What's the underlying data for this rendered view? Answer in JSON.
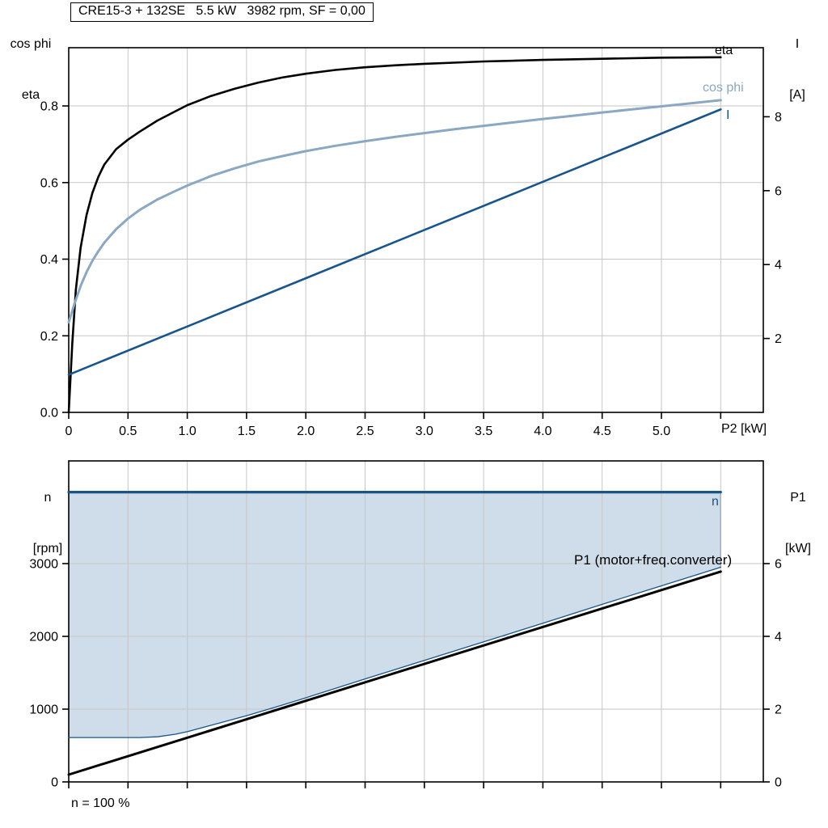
{
  "colors": {
    "black": "#000000",
    "dark_blue": "#17558a",
    "light_blue": "#8aa8c3",
    "fill_blue": "#cedde9",
    "grid": "#c6c6c6",
    "frame": "#000000",
    "background": "#ffffff"
  },
  "header": {
    "title": "CRE15-3 + 132SE   5.5 kW   3982 rpm, SF = 0,00"
  },
  "chart_data": [
    {
      "type": "line",
      "title": "CRE15-3 + 132SE   5.5 kW   3982 rpm, SF = 0,00",
      "xlabel": "P2 [kW]",
      "xlim": [
        0,
        5.86
      ],
      "grid": true,
      "x_ticks": [
        0,
        0.5,
        1,
        1.5,
        2,
        2.5,
        3,
        3.5,
        4,
        4.5,
        5
      ],
      "x_tick_labels": [
        "0",
        "0.5",
        "1.0",
        "1.5",
        "2.0",
        "2.5",
        "3.0",
        "3.5",
        "4.0",
        "4.5",
        "5.0"
      ],
      "x_grid": [
        0.5,
        1,
        1.5,
        2,
        2.5,
        3,
        3.5,
        4,
        4.5,
        5,
        5.5
      ],
      "left_axis": {
        "name_lines": [
          "cos phi",
          "eta"
        ],
        "lim": [
          0,
          0.952
        ],
        "ticks": [
          0,
          0.2,
          0.4,
          0.6,
          0.8
        ],
        "tick_labels": [
          "0.0",
          "0.2",
          "0.4",
          "0.6",
          "0.8"
        ]
      },
      "right_axis": {
        "name_lines": [
          "I",
          "[A]"
        ],
        "lim": [
          0,
          9.87
        ],
        "ticks": [
          2,
          4,
          6,
          8
        ],
        "tick_labels": [
          "2",
          "4",
          "6",
          "8"
        ]
      },
      "series": [
        {
          "id": "eta",
          "label": "eta",
          "axis": "left",
          "color_key": "black",
          "width": 2.6,
          "points": [
            [
              0,
              0
            ],
            [
              0.03,
              0.18
            ],
            [
              0.06,
              0.32
            ],
            [
              0.1,
              0.43
            ],
            [
              0.15,
              0.515
            ],
            [
              0.2,
              0.573
            ],
            [
              0.25,
              0.615
            ],
            [
              0.3,
              0.647
            ],
            [
              0.4,
              0.687
            ],
            [
              0.5,
              0.712
            ],
            [
              0.6,
              0.733
            ],
            [
              0.75,
              0.762
            ],
            [
              0.9,
              0.786
            ],
            [
              1,
              0.802
            ],
            [
              1.2,
              0.826
            ],
            [
              1.4,
              0.845
            ],
            [
              1.6,
              0.861
            ],
            [
              1.8,
              0.874
            ],
            [
              2,
              0.884
            ],
            [
              2.25,
              0.894
            ],
            [
              2.5,
              0.901
            ],
            [
              2.75,
              0.906
            ],
            [
              3,
              0.91
            ],
            [
              3.25,
              0.913
            ],
            [
              3.5,
              0.916
            ],
            [
              4,
              0.92
            ],
            [
              4.5,
              0.923
            ],
            [
              5,
              0.926
            ],
            [
              5.5,
              0.927
            ]
          ]
        },
        {
          "id": "cos-phi",
          "label": "cos phi",
          "axis": "left",
          "color_key": "light_blue",
          "width": 3,
          "points": [
            [
              0,
              0.235
            ],
            [
              0.05,
              0.285
            ],
            [
              0.1,
              0.33
            ],
            [
              0.15,
              0.366
            ],
            [
              0.2,
              0.396
            ],
            [
              0.25,
              0.421
            ],
            [
              0.3,
              0.443
            ],
            [
              0.4,
              0.478
            ],
            [
              0.5,
              0.506
            ],
            [
              0.6,
              0.529
            ],
            [
              0.75,
              0.556
            ],
            [
              0.9,
              0.578
            ],
            [
              1,
              0.592
            ],
            [
              1.2,
              0.617
            ],
            [
              1.4,
              0.637
            ],
            [
              1.6,
              0.655
            ],
            [
              1.8,
              0.669
            ],
            [
              2,
              0.682
            ],
            [
              2.25,
              0.696
            ],
            [
              2.5,
              0.708
            ],
            [
              2.75,
              0.719
            ],
            [
              3,
              0.729
            ],
            [
              3.25,
              0.739
            ],
            [
              3.5,
              0.748
            ],
            [
              3.75,
              0.757
            ],
            [
              4,
              0.766
            ],
            [
              4.25,
              0.774
            ],
            [
              4.5,
              0.783
            ],
            [
              4.75,
              0.791
            ],
            [
              5,
              0.799
            ],
            [
              5.25,
              0.807
            ],
            [
              5.5,
              0.815
            ]
          ]
        },
        {
          "id": "current",
          "label": "I",
          "axis": "right",
          "color_key": "dark_blue",
          "width": 2.6,
          "points": [
            [
              0,
              1.02
            ],
            [
              5.5,
              8.2
            ]
          ]
        }
      ]
    },
    {
      "type": "line",
      "title": "",
      "xlabel": "",
      "footnote": "n = 100 %",
      "xlim": [
        0,
        5.86
      ],
      "grid": true,
      "x_grid": [
        0.5,
        1,
        1.5,
        2,
        2.5,
        3,
        3.5,
        4,
        4.5,
        5,
        5.5
      ],
      "left_axis": {
        "name_lines": [
          "n",
          "[rpm]"
        ],
        "lim": [
          0,
          4411
        ],
        "ticks": [
          0,
          1000,
          2000,
          3000
        ],
        "tick_labels": [
          "0",
          "1000",
          "2000",
          "3000"
        ]
      },
      "right_axis": {
        "name_lines": [
          "P1",
          "[kW]"
        ],
        "lim": [
          0,
          8.82
        ],
        "ticks": [
          0,
          2,
          4,
          6
        ],
        "tick_labels": [
          "0",
          "2",
          "4",
          "6"
        ]
      },
      "fill_area": {
        "color_key": "fill_blue",
        "top_series": 0,
        "bottom_series": 2,
        "right_edge": true
      },
      "series": [
        {
          "id": "speed",
          "label": "n",
          "axis": "left",
          "color_key": "dark_blue",
          "width": 3.2,
          "points": [
            [
              0,
              3982
            ],
            [
              5.5,
              3982
            ]
          ]
        },
        {
          "id": "p1-total",
          "label": "P1 (motor+freq.converter)",
          "axis": "right",
          "color_key": "black",
          "width": 3,
          "points": [
            [
              0,
              0.2
            ],
            [
              5.5,
              5.78
            ]
          ]
        },
        {
          "id": "p1-lower",
          "label": "",
          "axis": "right",
          "color_key": "dark_blue",
          "width": 1.3,
          "points": [
            [
              0,
              1.22
            ],
            [
              0.6,
              1.22
            ],
            [
              0.75,
              1.24
            ],
            [
              0.9,
              1.31
            ],
            [
              1,
              1.38
            ],
            [
              1.25,
              1.6
            ],
            [
              1.5,
              1.82
            ],
            [
              1.75,
              2.06
            ],
            [
              2,
              2.31
            ],
            [
              2.5,
              2.83
            ],
            [
              3,
              3.34
            ],
            [
              3.5,
              3.85
            ],
            [
              4,
              4.36
            ],
            [
              4.5,
              4.88
            ],
            [
              5,
              5.39
            ],
            [
              5.5,
              5.9
            ]
          ]
        }
      ]
    }
  ]
}
